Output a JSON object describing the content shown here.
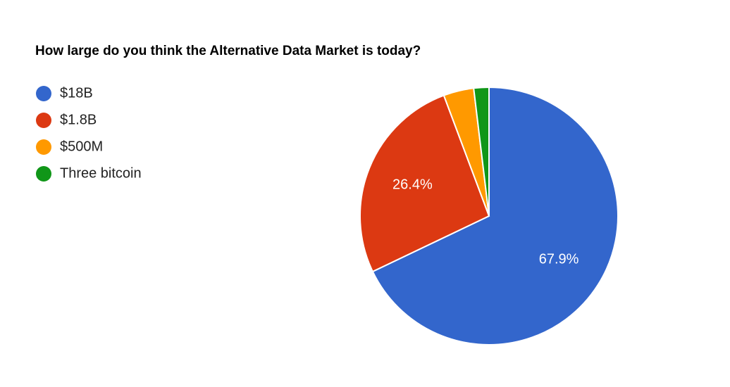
{
  "chart_data": {
    "type": "pie",
    "title": "How large do you think the Alternative Data Market is today?",
    "categories": [
      "$18B",
      "$1.8B",
      "$500M",
      "Three bitcoin"
    ],
    "values": [
      67.9,
      26.4,
      3.8,
      1.9
    ],
    "value_labels": [
      "67.9%",
      "26.4%",
      null,
      null
    ],
    "colors": [
      "#3366cc",
      "#dc3912",
      "#ff9900",
      "#109618"
    ],
    "legend": "left"
  }
}
